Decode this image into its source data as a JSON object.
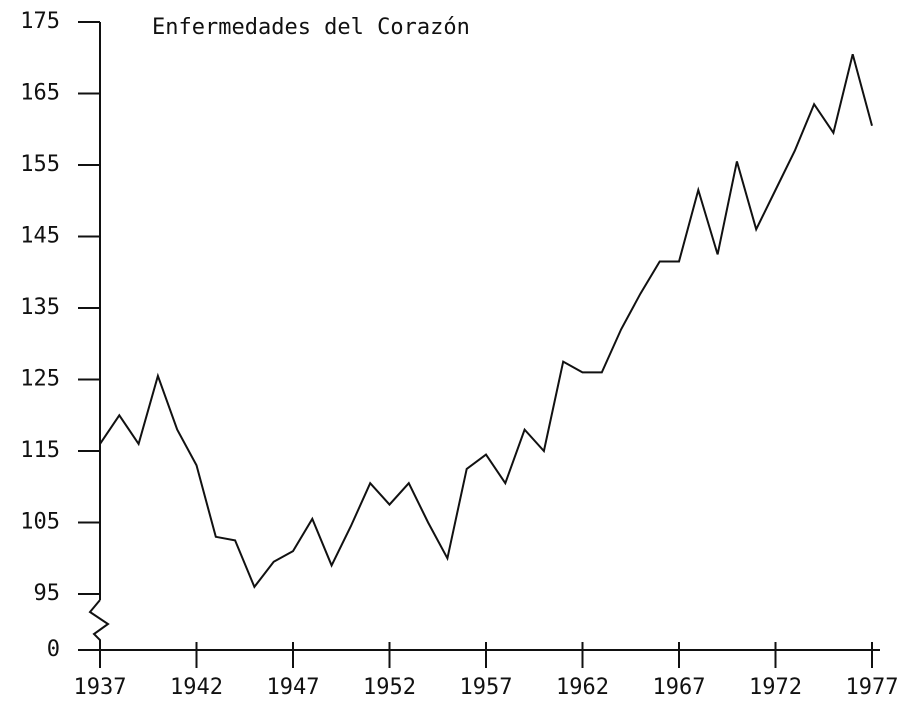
{
  "chart_data": {
    "type": "line",
    "title": "Enfermedades del Corazón",
    "x": [
      1937,
      1938,
      1939,
      1940,
      1941,
      1942,
      1943,
      1944,
      1945,
      1946,
      1947,
      1948,
      1949,
      1950,
      1951,
      1952,
      1953,
      1954,
      1955,
      1956,
      1957,
      1958,
      1959,
      1960,
      1961,
      1962,
      1963,
      1964,
      1965,
      1966,
      1967,
      1968,
      1969,
      1970,
      1971,
      1972,
      1973,
      1974,
      1975,
      1976,
      1977
    ],
    "values": [
      116,
      120,
      116,
      125.5,
      118,
      113,
      103,
      102.5,
      96,
      99.5,
      101,
      105.5,
      99,
      104.5,
      110.5,
      107.5,
      110.5,
      105,
      100,
      112.5,
      114.5,
      110.5,
      118,
      115,
      127.5,
      126,
      126,
      132,
      137,
      141.5,
      141.5,
      151.5,
      142.5,
      155.5,
      146,
      151.5,
      157,
      163.5,
      159.5,
      170.5,
      160.5
    ],
    "color": "#111111",
    "xlim": [
      1937,
      1977
    ],
    "xticks": [
      1937,
      1942,
      1947,
      1952,
      1957,
      1962,
      1967,
      1972,
      1977
    ],
    "ylim": [
      0,
      175
    ],
    "yticks": [
      0,
      95,
      105,
      115,
      125,
      135,
      145,
      155,
      165,
      175
    ],
    "axis_break": true
  }
}
